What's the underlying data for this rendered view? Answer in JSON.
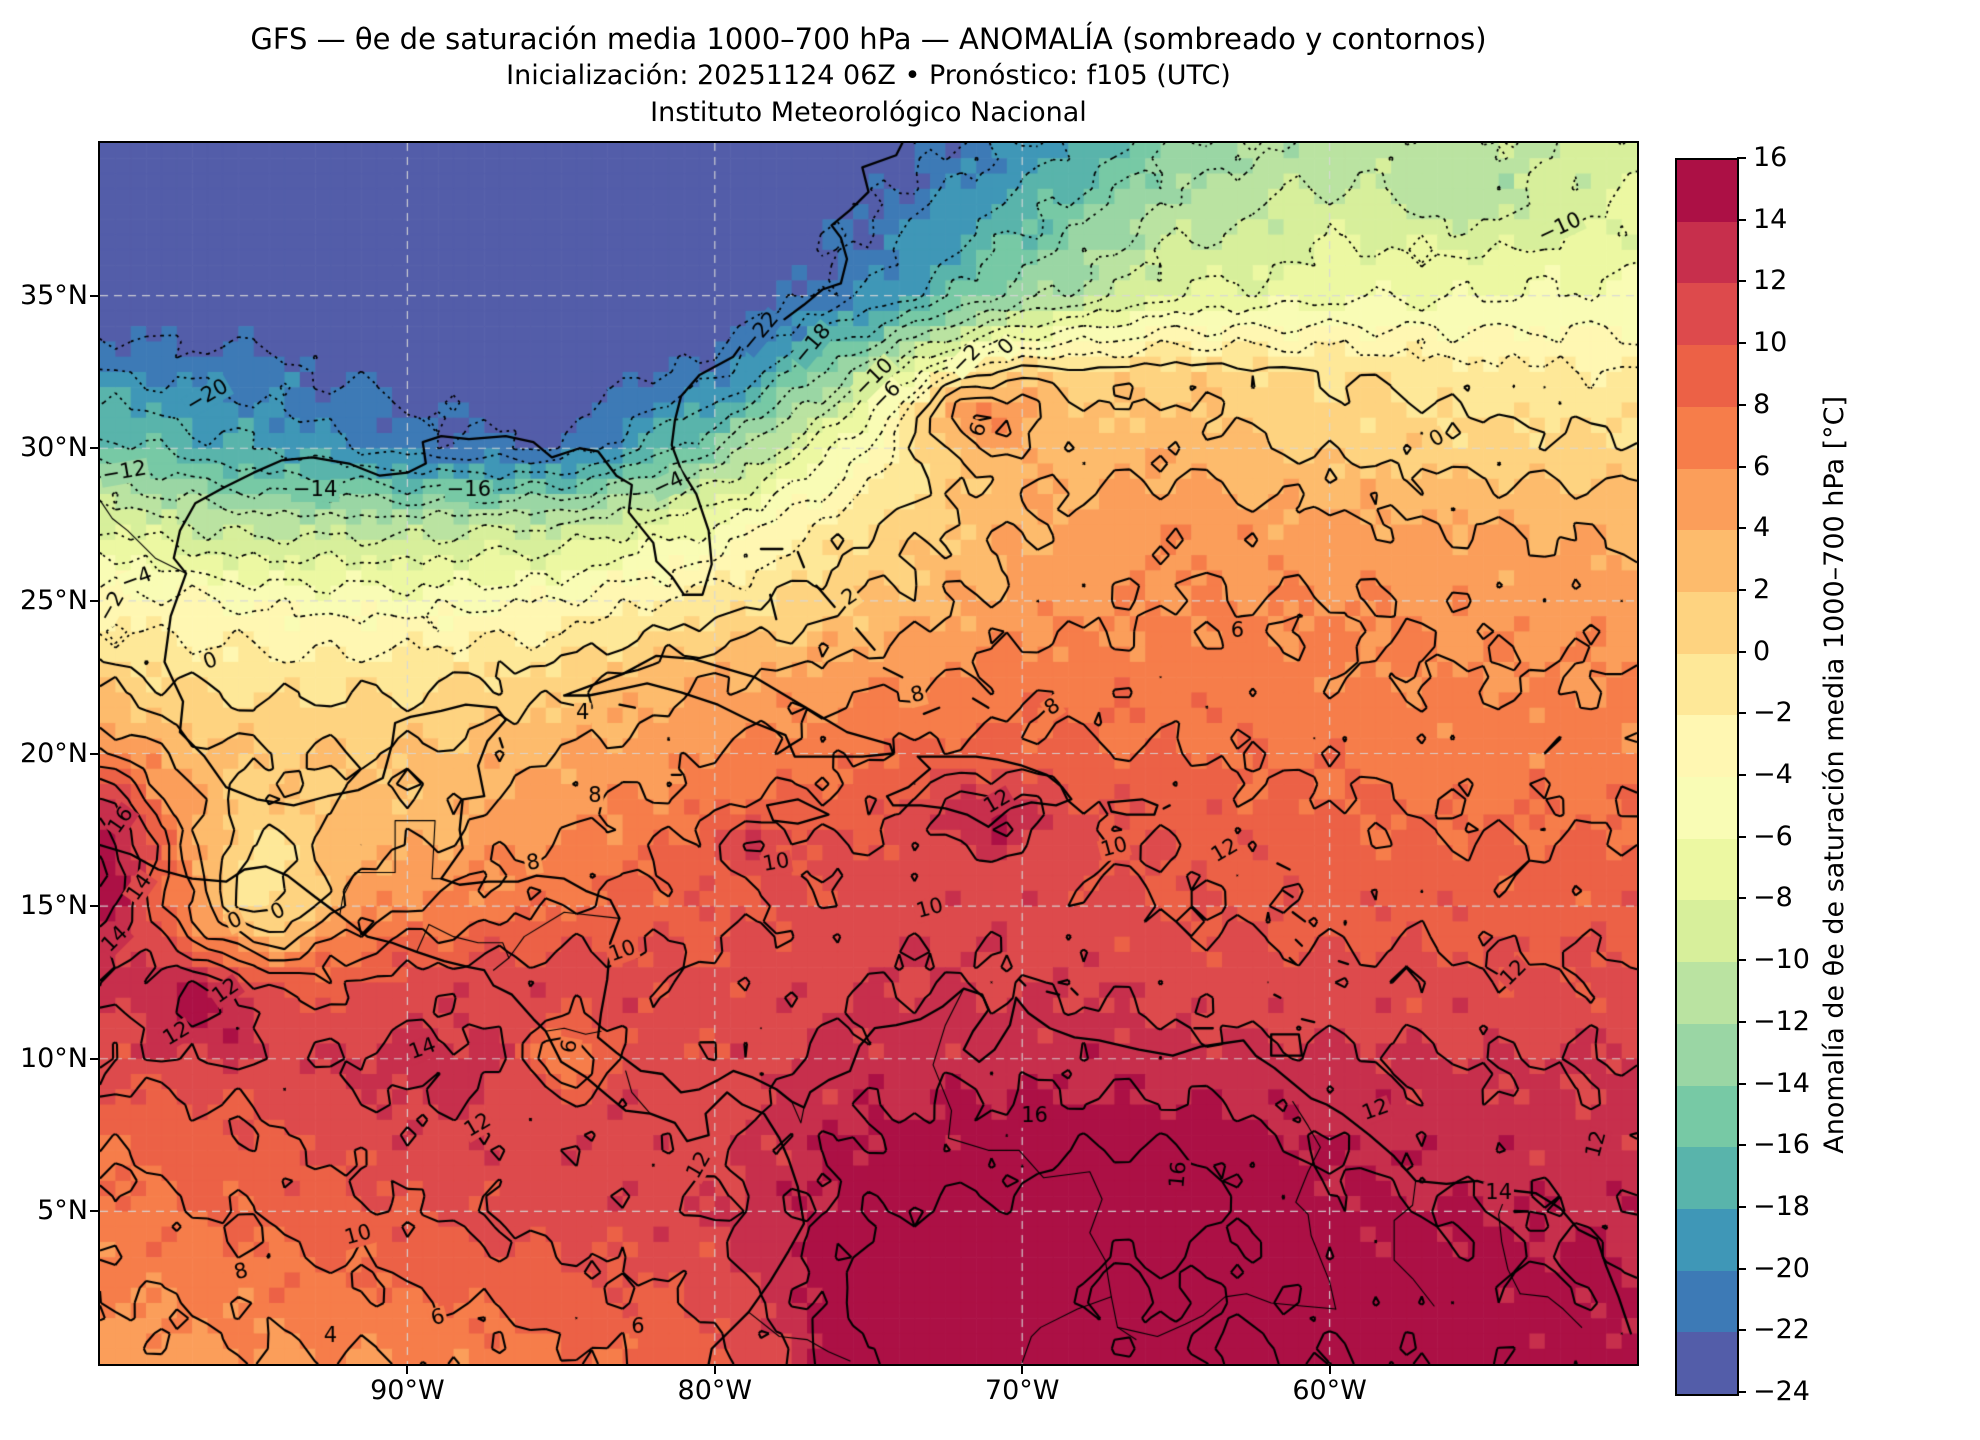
{
  "title": {
    "line1": "GFS — θe de saturación media 1000–700 hPa — ANOMALÍA (sombreado y contornos)",
    "line2": "Inicialización: 20251124 06Z   •   Pronóstico: f105 (UTC)",
    "line3": "Instituto Meteorológico Nacional"
  },
  "axes": {
    "x_ticks": [
      {
        "label": "90°W",
        "lon": -90
      },
      {
        "label": "80°W",
        "lon": -80
      },
      {
        "label": "70°W",
        "lon": -70
      },
      {
        "label": "60°W",
        "lon": -60
      }
    ],
    "y_ticks": [
      {
        "label": "35°N",
        "lat": 35
      },
      {
        "label": "30°N",
        "lat": 30
      },
      {
        "label": "25°N",
        "lat": 25
      },
      {
        "label": "20°N",
        "lat": 20
      },
      {
        "label": "15°N",
        "lat": 15
      },
      {
        "label": "10°N",
        "lat": 10
      },
      {
        "label": "5°N",
        "lat": 5
      }
    ],
    "grid_lons": [
      -90,
      -80,
      -70,
      -60
    ],
    "grid_lats": [
      5,
      10,
      15,
      20,
      25,
      30,
      35
    ]
  },
  "colorbar": {
    "label": "Anomalía de θe de saturación media 1000–700 hPa [°C]",
    "vmin": -24,
    "vmax": 16,
    "step": 2,
    "ticks": [
      16,
      14,
      12,
      10,
      8,
      6,
      4,
      2,
      0,
      -2,
      -4,
      -6,
      -8,
      -10,
      -12,
      -14,
      -16,
      -18,
      -20,
      -22,
      -24
    ],
    "colors_bottom_to_top": [
      "#535da9",
      "#3d7ab6",
      "#3f97b7",
      "#59b4ab",
      "#77c9a5",
      "#9ad6a4",
      "#bae3a1",
      "#d7ef9b",
      "#ecf8a2",
      "#f9fcb5",
      "#fff7b2",
      "#fee898",
      "#fed380",
      "#fdbb6c",
      "#fb9e5a",
      "#f67d4a",
      "#ec6146",
      "#dd4a4c",
      "#c72f4c",
      "#ac1045"
    ]
  },
  "chart_data": {
    "type": "filled_contour_map",
    "title": "GFS saturation θe anomaly 1000–700 hPa",
    "units": "°C",
    "lon_range": [
      -100,
      -50
    ],
    "lat_range": [
      0,
      40
    ],
    "contour_levels_dotted": [
      -22,
      -20,
      -18,
      -16,
      -14,
      -12,
      -10,
      -8,
      -6,
      -4,
      -2
    ],
    "contour_levels_solid": [
      0,
      2,
      4,
      6,
      8,
      10,
      12,
      14,
      16
    ],
    "grid": {
      "lons": [
        -100,
        -95,
        -90,
        -85,
        -80,
        -75,
        -70,
        -65,
        -60,
        -55,
        -50
      ],
      "lats": [
        40,
        35,
        32.5,
        30,
        27.5,
        25,
        22.5,
        20,
        17.5,
        15,
        12.5,
        10,
        5,
        0
      ],
      "values": [
        [
          -26,
          -26,
          -26,
          -26,
          -25.5,
          -24,
          -20,
          -14,
          -11,
          -10,
          -9
        ],
        [
          -24.5,
          -25,
          -26,
          -26,
          -25,
          -20,
          -13,
          -8,
          -6.5,
          -6,
          -5.5
        ],
        [
          -20,
          -21,
          -23,
          -24,
          -21,
          -11,
          0,
          1,
          0,
          -1.5,
          -2
        ],
        [
          -15,
          -18,
          -21,
          -22,
          -14,
          -4,
          3,
          3.5,
          1.5,
          1,
          0.5
        ],
        [
          -8,
          -11,
          -11,
          -10,
          -6,
          0,
          4,
          5.5,
          4.5,
          4,
          3.5
        ],
        [
          -3,
          -4.5,
          -5,
          -4,
          -1,
          2,
          5,
          6,
          6,
          5.5,
          5
        ],
        [
          0.5,
          -1,
          -0.5,
          1,
          4,
          5,
          7,
          7,
          6.5,
          6,
          6
        ],
        [
          2,
          2,
          2,
          4,
          6,
          8,
          9,
          8,
          7.5,
          7,
          7
        ],
        [
          3,
          2.5,
          3,
          6,
          8,
          10,
          11,
          9.5,
          8.5,
          8,
          8
        ],
        [
          4,
          3,
          6,
          8,
          9.5,
          11,
          11,
          10,
          9.5,
          9,
          9
        ],
        [
          8,
          7,
          11,
          11,
          10.5,
          12,
          12,
          11,
          10.5,
          10.5,
          10.5
        ],
        [
          10,
          11,
          13,
          12,
          10.5,
          13,
          13.5,
          13,
          12.5,
          12,
          12
        ],
        [
          7,
          8.5,
          10,
          11,
          12,
          15.5,
          16,
          15.5,
          14.5,
          14,
          13.5
        ],
        [
          5,
          5.5,
          6,
          7.5,
          9,
          16,
          17,
          16.5,
          16,
          15.5,
          15
        ]
      ]
    },
    "anomaly_centers": [
      [
        -71.2,
        17.9,
        3.5,
        2.0,
        1.2
      ],
      [
        -78.8,
        17.0,
        3.0,
        1.5,
        1.0
      ],
      [
        -71.8,
        31.2,
        7.0,
        2.2,
        1.3
      ],
      [
        -55.0,
        38.0,
        -2.5,
        3.0,
        1.6
      ],
      [
        -100.8,
        16.5,
        14.0,
        3.0,
        3.5
      ],
      [
        -94.6,
        15.5,
        -4.5,
        1.8,
        2.5
      ],
      [
        -96.5,
        12.0,
        6.0,
        2.5,
        1.8
      ],
      [
        -84.8,
        10.0,
        -5.5,
        1.4,
        1.2
      ],
      [
        -65.5,
        6.0,
        2.0,
        4.0,
        2.0
      ],
      [
        -73.0,
        2.5,
        2.5,
        3.0,
        2.0
      ]
    ],
    "noise_terms": [
      [
        0.8,
        2.3,
        1.1,
        1.9,
        0.6
      ],
      [
        0.55,
        5.1,
        2.7,
        4.3,
        1.4
      ],
      [
        0.35,
        9.3,
        0.5,
        8.7,
        3.1
      ]
    ],
    "grid_step_deg": 0.5,
    "contour_labels": [
      {
        "v": "-20",
        "lon": -96.5,
        "lat": 31.7,
        "rot": -30
      },
      {
        "v": "-12",
        "lon": -99.2,
        "lat": 29.2,
        "rot": -10
      },
      {
        "v": "-14",
        "lon": -93.0,
        "lat": 28.6,
        "rot": 0
      },
      {
        "v": "-16",
        "lon": -88.0,
        "lat": 28.6,
        "rot": 0
      },
      {
        "v": "-22",
        "lon": -78.5,
        "lat": 33.8,
        "rot": -50
      },
      {
        "v": "-18",
        "lon": -76.8,
        "lat": 33.4,
        "rot": -50
      },
      {
        "v": "-10",
        "lon": -74.8,
        "lat": 32.3,
        "rot": -45
      },
      {
        "v": "-10",
        "lon": -52.5,
        "lat": 37.2,
        "rot": -25
      },
      {
        "v": "-6",
        "lon": -74.4,
        "lat": 31.7,
        "rot": -45
      },
      {
        "v": "-2",
        "lon": -71.8,
        "lat": 32.9,
        "rot": -45
      },
      {
        "v": "0",
        "lon": -70.5,
        "lat": 33.3,
        "rot": -45
      },
      {
        "v": "-4",
        "lon": -81.5,
        "lat": 28.8,
        "rot": -25
      },
      {
        "v": "-2",
        "lon": -99.6,
        "lat": 24.8,
        "rot": -60
      },
      {
        "v": "-4",
        "lon": -98.8,
        "lat": 25.7,
        "rot": -20
      },
      {
        "v": "0",
        "lon": -56.5,
        "lat": 30.3,
        "rot": -30
      },
      {
        "v": "6",
        "lon": -71.4,
        "lat": 30.6,
        "rot": -70
      },
      {
        "v": "2",
        "lon": -75.6,
        "lat": 25.1,
        "rot": -35
      },
      {
        "v": "6",
        "lon": -63.0,
        "lat": 24.0,
        "rot": 0
      },
      {
        "v": "8",
        "lon": -73.4,
        "lat": 21.9,
        "rot": -15
      },
      {
        "v": "8",
        "lon": -69.0,
        "lat": 21.5,
        "rot": -35
      },
      {
        "v": "4",
        "lon": -84.3,
        "lat": 21.3,
        "rot": 0
      },
      {
        "v": "8",
        "lon": -83.9,
        "lat": 18.6,
        "rot": 0
      },
      {
        "v": "10",
        "lon": -78.0,
        "lat": 16.4,
        "rot": -10
      },
      {
        "v": "10",
        "lon": -67.0,
        "lat": 16.9,
        "rot": -15
      },
      {
        "v": "0",
        "lon": -96.4,
        "lat": 23.0,
        "rot": -20
      },
      {
        "v": "0",
        "lon": -95.6,
        "lat": 14.5,
        "rot": -25
      },
      {
        "v": "0",
        "lon": -94.2,
        "lat": 14.8,
        "rot": -25
      },
      {
        "v": "10",
        "lon": -73.0,
        "lat": 14.9,
        "rot": -15
      },
      {
        "v": "12",
        "lon": -70.8,
        "lat": 18.4,
        "rot": -30
      },
      {
        "v": "16",
        "lon": -99.3,
        "lat": 17.8,
        "rot": -55
      },
      {
        "v": "14",
        "lon": -98.7,
        "lat": 15.6,
        "rot": -55
      },
      {
        "v": "14",
        "lon": -99.5,
        "lat": 13.9,
        "rot": -45
      },
      {
        "v": "12",
        "lon": -95.9,
        "lat": 12.2,
        "rot": -35
      },
      {
        "v": "12",
        "lon": -54.0,
        "lat": 12.8,
        "rot": -45
      },
      {
        "v": "6",
        "lon": -84.7,
        "lat": 10.4,
        "rot": -80
      },
      {
        "v": "12",
        "lon": -97.5,
        "lat": 10.8,
        "rot": -30
      },
      {
        "v": "14",
        "lon": -89.5,
        "lat": 10.3,
        "rot": -20
      },
      {
        "v": "12",
        "lon": -87.7,
        "lat": 7.8,
        "rot": -30
      },
      {
        "v": "12",
        "lon": -80.5,
        "lat": 6.5,
        "rot": -60
      },
      {
        "v": "16",
        "lon": -69.6,
        "lat": 8.1,
        "rot": 0
      },
      {
        "v": "16",
        "lon": -64.9,
        "lat": 6.2,
        "rot": -85
      },
      {
        "v": "14",
        "lon": -54.5,
        "lat": 5.6,
        "rot": 0
      },
      {
        "v": "12",
        "lon": -58.5,
        "lat": 8.3,
        "rot": -20
      },
      {
        "v": "12",
        "lon": -51.3,
        "lat": 7.2,
        "rot": -75
      },
      {
        "v": "10",
        "lon": -91.6,
        "lat": 4.2,
        "rot": -15
      },
      {
        "v": "8",
        "lon": -95.4,
        "lat": 3.0,
        "rot": -15
      },
      {
        "v": "6",
        "lon": -89.0,
        "lat": 1.5,
        "rot": -15
      },
      {
        "v": "4",
        "lon": -92.5,
        "lat": 0.9,
        "rot": 0
      },
      {
        "v": "6",
        "lon": -82.5,
        "lat": 1.2,
        "rot": 0
      },
      {
        "v": "8",
        "lon": -85.9,
        "lat": 16.4,
        "rot": -10
      },
      {
        "v": "10",
        "lon": -83.0,
        "lat": 13.5,
        "rot": -20
      },
      {
        "v": "12",
        "lon": -63.4,
        "lat": 16.8,
        "rot": -30
      }
    ]
  }
}
